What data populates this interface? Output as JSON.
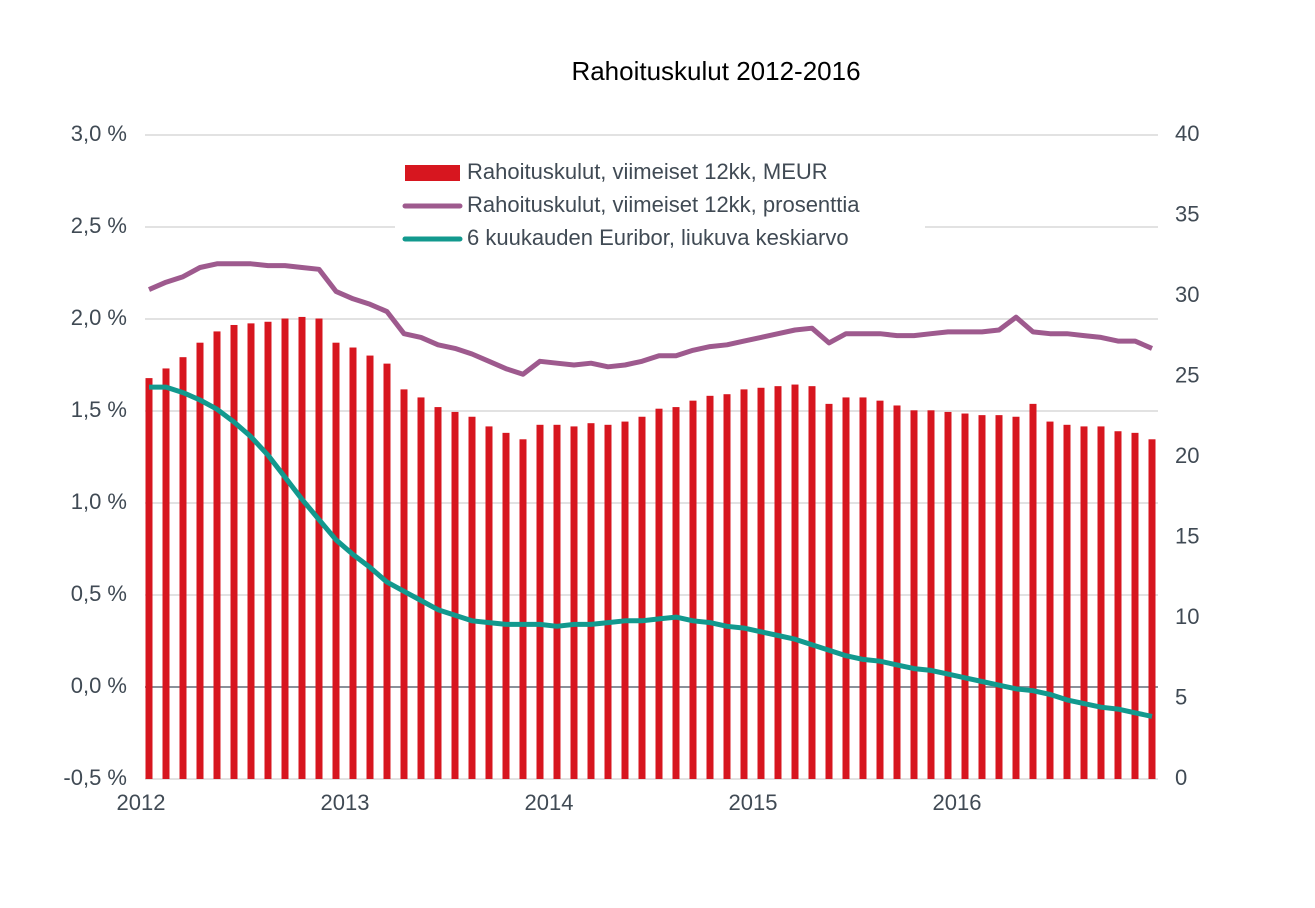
{
  "chart_data": {
    "type": "bar-line",
    "title": "Rahoituskulut 2012-2016",
    "categories": [
      "2012",
      null,
      null,
      null,
      null,
      null,
      null,
      null,
      null,
      null,
      null,
      null,
      "2013",
      null,
      null,
      null,
      null,
      null,
      null,
      null,
      null,
      null,
      null,
      null,
      "2014",
      null,
      null,
      null,
      null,
      null,
      null,
      null,
      null,
      null,
      null,
      null,
      "2015",
      null,
      null,
      null,
      null,
      null,
      null,
      null,
      null,
      null,
      null,
      null,
      "2016",
      null,
      null,
      null,
      null,
      null,
      null,
      null,
      null,
      null,
      null,
      null
    ],
    "series": [
      {
        "name": "Rahoituskulut, viimeiset 12kk, MEUR",
        "type": "bar",
        "axis": "y2",
        "color": "#d7161f",
        "values": [
          24.9,
          25.5,
          26.2,
          27.1,
          27.8,
          28.2,
          28.3,
          28.4,
          28.6,
          28.7,
          28.6,
          27.1,
          26.8,
          26.3,
          25.8,
          24.2,
          23.7,
          23.1,
          22.8,
          22.5,
          21.9,
          21.5,
          21.1,
          22.0,
          22.0,
          21.9,
          22.1,
          22.0,
          22.2,
          22.5,
          23.0,
          23.1,
          23.5,
          23.8,
          23.9,
          24.2,
          24.3,
          24.4,
          24.5,
          24.4,
          23.3,
          23.7,
          23.7,
          23.5,
          23.2,
          22.9,
          22.9,
          22.8,
          22.7,
          22.6,
          22.6,
          22.5,
          23.3,
          22.2,
          22.0,
          21.9,
          21.9,
          21.6,
          21.5,
          21.1
        ]
      },
      {
        "name": "Rahoituskulut, viimeiset 12kk, prosenttia",
        "type": "line",
        "axis": "y",
        "color": "#9e5a8e",
        "values": [
          2.16,
          2.2,
          2.23,
          2.28,
          2.3,
          2.3,
          2.3,
          2.29,
          2.29,
          2.28,
          2.27,
          2.15,
          2.11,
          2.08,
          2.04,
          1.92,
          1.9,
          1.86,
          1.84,
          1.81,
          1.77,
          1.73,
          1.7,
          1.77,
          1.76,
          1.75,
          1.76,
          1.74,
          1.75,
          1.77,
          1.8,
          1.8,
          1.83,
          1.85,
          1.86,
          1.88,
          1.9,
          1.92,
          1.94,
          1.95,
          1.87,
          1.92,
          1.92,
          1.92,
          1.91,
          1.91,
          1.92,
          1.93,
          1.93,
          1.93,
          1.94,
          2.01,
          1.93,
          1.92,
          1.92,
          1.91,
          1.9,
          1.88,
          1.88,
          1.84
        ]
      },
      {
        "name": "6 kuukauden Euribor, liukuva keskiarvo",
        "type": "line",
        "axis": "y",
        "color": "#12998e",
        "values": [
          1.63,
          1.63,
          1.6,
          1.56,
          1.51,
          1.44,
          1.36,
          1.26,
          1.14,
          1.02,
          0.91,
          0.8,
          0.72,
          0.65,
          0.57,
          0.52,
          0.47,
          0.42,
          0.39,
          0.36,
          0.35,
          0.34,
          0.34,
          0.34,
          0.33,
          0.34,
          0.34,
          0.35,
          0.36,
          0.36,
          0.37,
          0.38,
          0.36,
          0.35,
          0.33,
          0.32,
          0.3,
          0.28,
          0.26,
          0.23,
          0.2,
          0.17,
          0.15,
          0.14,
          0.12,
          0.1,
          0.09,
          0.07,
          0.05,
          0.03,
          0.01,
          -0.01,
          -0.02,
          -0.04,
          -0.07,
          -0.09,
          -0.11,
          -0.12,
          -0.14,
          -0.16
        ]
      }
    ],
    "ylim": [
      -0.5,
      3.0
    ],
    "yticks": [
      {
        "value": -0.5,
        "label": "-0,5 %"
      },
      {
        "value": 0.0,
        "label": "0,0 %"
      },
      {
        "value": 0.5,
        "label": "0,5 %"
      },
      {
        "value": 1.0,
        "label": "1,0 %"
      },
      {
        "value": 1.5,
        "label": "1,5 %"
      },
      {
        "value": 2.0,
        "label": "2,0 %"
      },
      {
        "value": 2.5,
        "label": "2,5 %"
      },
      {
        "value": 3.0,
        "label": "3,0 %"
      }
    ],
    "y2lim": [
      0,
      40
    ],
    "y2ticks": [
      0,
      5,
      10,
      15,
      20,
      25,
      30,
      35,
      40
    ],
    "grid": true,
    "legend": "upper center"
  }
}
